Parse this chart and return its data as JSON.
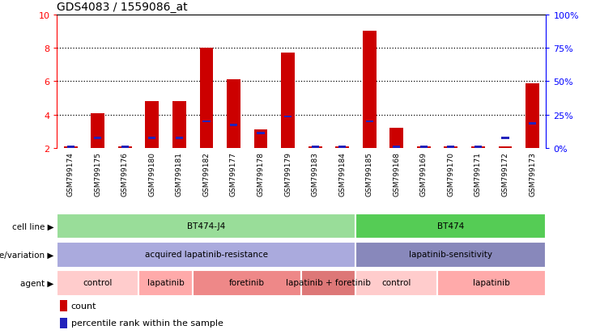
{
  "title": "GDS4083 / 1559086_at",
  "samples": [
    "GSM799174",
    "GSM799175",
    "GSM799176",
    "GSM799180",
    "GSM799181",
    "GSM799182",
    "GSM799177",
    "GSM799178",
    "GSM799179",
    "GSM799183",
    "GSM799184",
    "GSM799185",
    "GSM799168",
    "GSM799169",
    "GSM799170",
    "GSM799171",
    "GSM799172",
    "GSM799173"
  ],
  "count_values": [
    2.1,
    4.1,
    2.1,
    4.8,
    4.8,
    8.0,
    6.1,
    3.1,
    7.7,
    2.1,
    2.1,
    9.0,
    3.2,
    2.1,
    2.1,
    2.1,
    2.1,
    5.9
  ],
  "percentile_values": [
    2.1,
    2.6,
    2.1,
    2.6,
    2.6,
    3.6,
    3.4,
    2.9,
    3.9,
    2.1,
    2.1,
    3.6,
    2.1,
    2.1,
    2.1,
    2.1,
    2.6,
    3.5
  ],
  "ylim_left": [
    2,
    10
  ],
  "yticks_left": [
    2,
    4,
    6,
    8,
    10
  ],
  "yticks_right_vals": [
    0,
    25,
    50,
    75,
    100
  ],
  "yticks_right_labels": [
    "0%",
    "25%",
    "50%",
    "75%",
    "100%"
  ],
  "bar_color": "#cc0000",
  "percentile_color": "#2222bb",
  "bar_width": 0.5,
  "cell_line_groups": [
    {
      "label": "BT474-J4",
      "start": 0,
      "end": 11,
      "color": "#99dd99"
    },
    {
      "label": "BT474",
      "start": 11,
      "end": 18,
      "color": "#55cc55"
    }
  ],
  "genotype_groups": [
    {
      "label": "acquired lapatinib-resistance",
      "start": 0,
      "end": 11,
      "color": "#aaaadd"
    },
    {
      "label": "lapatinib-sensitivity",
      "start": 11,
      "end": 18,
      "color": "#8888bb"
    }
  ],
  "agent_groups": [
    {
      "label": "control",
      "start": 0,
      "end": 3,
      "color": "#ffcccc"
    },
    {
      "label": "lapatinib",
      "start": 3,
      "end": 5,
      "color": "#ffaaaa"
    },
    {
      "label": "foretinib",
      "start": 5,
      "end": 9,
      "color": "#ee8888"
    },
    {
      "label": "lapatinib + foretinib",
      "start": 9,
      "end": 11,
      "color": "#dd7777"
    },
    {
      "label": "control",
      "start": 11,
      "end": 14,
      "color": "#ffcccc"
    },
    {
      "label": "lapatinib",
      "start": 14,
      "end": 18,
      "color": "#ffaaaa"
    }
  ],
  "row_labels": [
    "cell line",
    "genotype/variation",
    "agent"
  ],
  "legend_items": [
    {
      "label": "count",
      "color": "#cc0000"
    },
    {
      "label": "percentile rank within the sample",
      "color": "#2222bb"
    }
  ],
  "xticklabel_bg": "#d8d8d8",
  "dotted_lines": [
    4,
    6,
    8
  ],
  "n_samples": 18
}
